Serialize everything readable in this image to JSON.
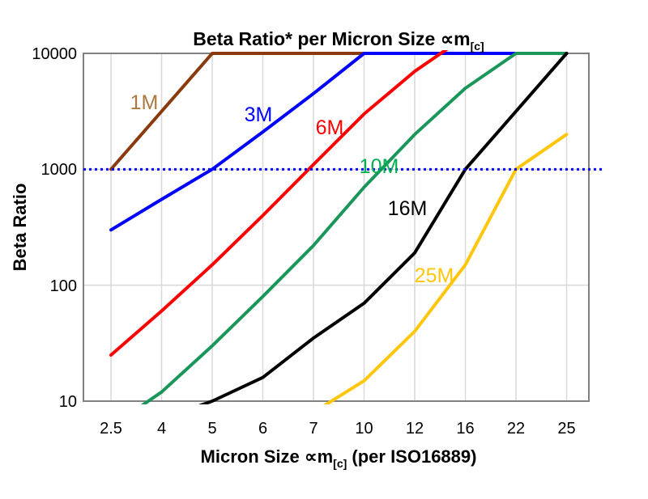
{
  "chart_title": {
    "main": "Beta Ratio* per Micron Size ∝m",
    "sub": "[c]"
  },
  "axes": {
    "y_title": "Beta Ratio",
    "x_title_part1": "Micron Size ∝m",
    "x_title_sub": "[c]",
    "x_title_part2": " (per ISO16889)",
    "y_tick_labels": [
      "10000",
      "1000",
      "100",
      "10"
    ],
    "x_tick_labels": [
      "2.5",
      "4",
      "5",
      "6",
      "7",
      "10",
      "12",
      "16",
      "22",
      "25"
    ]
  },
  "chart_data": {
    "type": "line",
    "title": "Beta Ratio* per Micron Size ∝m[c]",
    "xlabel": "Micron Size ∝m[c] (per ISO16889)",
    "ylabel": "Beta Ratio",
    "x_scale": "category",
    "y_scale": "log",
    "ylim": [
      10,
      10000
    ],
    "grid": true,
    "legend": "inline-labels",
    "categories": [
      2.5,
      4,
      5,
      6,
      7,
      10,
      12,
      16,
      22,
      25
    ],
    "y_gridline_values": [
      1000,
      100
    ],
    "series": [
      {
        "name": "1M",
        "color": "#8B3A0E",
        "label_color": "#AA7840",
        "values": [
          1000,
          3162,
          10000,
          10000,
          10000,
          10000,
          10000,
          10000,
          10000,
          10000
        ]
      },
      {
        "name": "3M",
        "color": "#0000FF",
        "label_color": "#0000FF",
        "values": [
          300,
          550,
          1000,
          2100,
          4500,
          10000,
          10000,
          10000,
          10000,
          10000
        ]
      },
      {
        "name": "6M",
        "color": "#FF0000",
        "label_color": "#FF0000",
        "values": [
          25,
          60,
          150,
          400,
          1100,
          3000,
          7000,
          14000,
          null,
          null
        ]
      },
      {
        "name": "10M",
        "color": "#1A965A",
        "label_color": "#00B050",
        "values": [
          6,
          12,
          30,
          80,
          220,
          700,
          2000,
          5000,
          10000,
          10000
        ]
      },
      {
        "name": "16M",
        "color": "#000000",
        "label_color": "#000000",
        "values": [
          null,
          7,
          10,
          16,
          35,
          70,
          190,
          1000,
          3162,
          10000
        ]
      },
      {
        "name": "25M",
        "color": "#FFC60B",
        "label_color": "#FFC60B",
        "values": [
          null,
          null,
          null,
          null,
          8,
          15,
          40,
          150,
          1000,
          2000
        ]
      }
    ],
    "reference_line": {
      "y": 1000,
      "style": "dotted",
      "color": "#0000FF"
    },
    "clipping_note": "values above 10000 exit through the top of the plot"
  },
  "style": {
    "grid_color": "#D9D9D9",
    "border_color": "#808080",
    "background": "#FFFFFF"
  }
}
